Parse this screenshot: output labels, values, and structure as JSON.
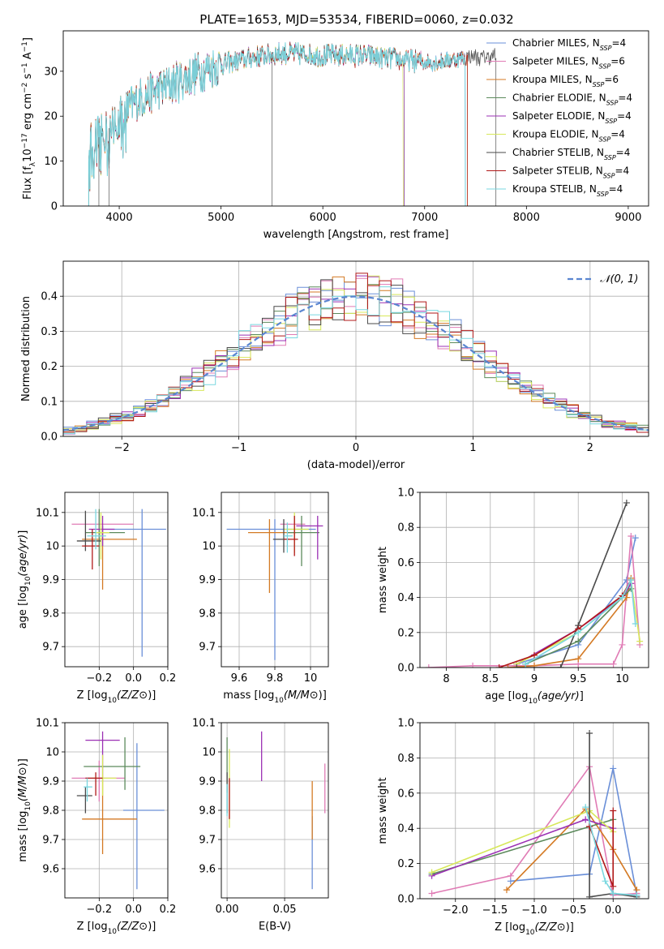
{
  "figure": {
    "title": "PLATE=1653, MJD=53534, FIBERID=0060, z=0.032"
  },
  "models": [
    {
      "name": "Chabrier MILES",
      "nssp": "4",
      "color": "#6a8fd8"
    },
    {
      "name": "Salpeter MILES",
      "nssp": "6",
      "color": "#e07bb5"
    },
    {
      "name": "Kroupa MILES",
      "nssp": "6",
      "color": "#d47a24"
    },
    {
      "name": "Chabrier ELODIE",
      "nssp": "4",
      "color": "#5c8a5c"
    },
    {
      "name": "Salpeter ELODIE",
      "nssp": "4",
      "color": "#9b30b4"
    },
    {
      "name": "Kroupa ELODIE",
      "nssp": "4",
      "color": "#d7e85a"
    },
    {
      "name": "Chabrier STELIB",
      "nssp": "4",
      "color": "#4a4a4a"
    },
    {
      "name": "Salpeter STELIB",
      "nssp": "4",
      "color": "#b01818"
    },
    {
      "name": "Kroupa STELIB",
      "nssp": "4",
      "color": "#79d7e0"
    }
  ],
  "chart_data": [
    {
      "id": "spectrum",
      "type": "line",
      "xlabel": "wavelength [Angstrom, rest frame]",
      "ylabel": "Flux [f_λ10^-17 erg cm^-2 s^-1 A^-1]",
      "xlim": [
        3450,
        9200
      ],
      "ylim": [
        0,
        39
      ],
      "xticks": [
        4000,
        5000,
        6000,
        7000,
        8000,
        9000
      ],
      "yticks": [
        0,
        10,
        20,
        30
      ],
      "grid": false,
      "legend_placement": "top-right",
      "continuum_x": [
        3700,
        3850,
        4000,
        4200,
        4500,
        4800,
        5000,
        5300,
        5600,
        6000,
        6400,
        6800,
        7100,
        7400,
        7700
      ],
      "continuum_y": [
        14,
        16,
        20,
        24,
        27,
        30,
        31.5,
        33,
        34,
        33.5,
        33.5,
        32.5,
        32,
        33,
        33.5
      ],
      "series_extent": {
        "Chabrier MILES": [
          3700,
          7400
        ],
        "Salpeter MILES": [
          3700,
          7400
        ],
        "Kroupa MILES": [
          3700,
          7420
        ],
        "Chabrier ELODIE": [
          3700,
          6800
        ],
        "Salpeter ELODIE": [
          3700,
          6800
        ],
        "Kroupa ELODIE": [
          3700,
          6790
        ],
        "Chabrier STELIB": [
          3700,
          7700
        ],
        "Salpeter STELIB": [
          3700,
          7420
        ],
        "Kroupa STELIB": [
          3700,
          7400
        ]
      }
    },
    {
      "id": "residuals",
      "type": "histogram",
      "xlabel": "(data-model)/error",
      "ylabel": "Normed distribution",
      "xlim": [
        -2.5,
        2.5
      ],
      "ylim": [
        0,
        0.5
      ],
      "xticks": [
        -2,
        -1,
        0,
        1,
        2
      ],
      "xtick_labels": [
        "−2",
        "−1",
        "0",
        "1",
        "2"
      ],
      "yticks": [
        0,
        0.1,
        0.2,
        0.3,
        0.4
      ],
      "grid": true,
      "legend": "𝒩(0, 1)",
      "legend_placement": "top-right",
      "reference_curve": {
        "type": "normal",
        "mean": 0,
        "sigma": 1,
        "color": "#5a85d0"
      },
      "bin_width": 0.1
    },
    {
      "id": "age-vs-Z",
      "type": "errorbar",
      "xlabel": "Z [log10(Z/Z⊙)]",
      "ylabel": "age [log10(age/yr)]",
      "xlim": [
        -0.4,
        0.2
      ],
      "ylim": [
        9.64,
        10.16
      ],
      "xticks": [
        -0.2,
        0.0,
        0.2
      ],
      "xtick_labels": [
        "−0.2",
        "0.0",
        "0.2"
      ],
      "yticks": [
        9.7,
        9.8,
        9.9,
        10.0,
        10.1
      ],
      "grid": true,
      "points": [
        {
          "x": 0.05,
          "xerr": [
            0.24,
            0.14
          ],
          "y": 10.05,
          "yerr": [
            0.38,
            0.06
          ]
        },
        {
          "x": -0.2,
          "xerr": [
            0.16,
            0.2
          ],
          "y": 10.065,
          "yerr": [
            0.04,
            0.035
          ]
        },
        {
          "x": -0.18,
          "xerr": [
            0.12,
            0.2
          ],
          "y": 10.02,
          "yerr": [
            0.15,
            0.04
          ]
        },
        {
          "x": -0.2,
          "xerr": [
            0.08,
            0.15
          ],
          "y": 10.04,
          "yerr": [
            0.1,
            0.07
          ]
        },
        {
          "x": -0.18,
          "xerr": [
            0.08,
            0.07
          ],
          "y": 10.05,
          "yerr": [
            0.05,
            0.04
          ]
        },
        {
          "x": -0.19,
          "xerr": [
            0.03,
            0.05
          ],
          "y": 10.04,
          "yerr": [
            0.08,
            0.06
          ]
        },
        {
          "x": -0.28,
          "xerr": [
            0.05,
            0.09
          ],
          "y": 10.015,
          "yerr": [
            0.03,
            0.09
          ]
        },
        {
          "x": -0.24,
          "xerr": [
            0.06,
            0.04
          ],
          "y": 10.0,
          "yerr": [
            0.07,
            0.05
          ]
        },
        {
          "x": -0.22,
          "xerr": [
            0.05,
            0.06
          ],
          "y": 10.03,
          "yerr": [
            0.04,
            0.08
          ]
        }
      ]
    },
    {
      "id": "age-vs-mass",
      "type": "errorbar",
      "xlabel": "mass [log10(M/M⊙)]",
      "ylabel": "",
      "xlim": [
        9.5,
        10.1
      ],
      "ylim": [
        9.64,
        10.16
      ],
      "xticks": [
        9.6,
        9.8,
        10.0
      ],
      "yticks": [
        9.7,
        9.8,
        9.9,
        10.0,
        10.1
      ],
      "grid": true,
      "points": [
        {
          "x": 9.8,
          "xerr": [
            0.27,
            0.23
          ],
          "y": 10.05,
          "yerr": [
            0.39,
            0.03
          ]
        },
        {
          "x": 9.91,
          "xerr": [
            0.08,
            0.06
          ],
          "y": 10.065,
          "yerr": [
            0.05,
            0.02
          ]
        },
        {
          "x": 9.77,
          "xerr": [
            0.12,
            0.15
          ],
          "y": 10.04,
          "yerr": [
            0.18,
            0.04
          ]
        },
        {
          "x": 9.95,
          "xerr": [
            0.08,
            0.1
          ],
          "y": 10.04,
          "yerr": [
            0.1,
            0.05
          ]
        },
        {
          "x": 10.04,
          "xerr": [
            0.12,
            0.03
          ],
          "y": 10.06,
          "yerr": [
            0.1,
            0.03
          ]
        },
        {
          "x": 9.91,
          "xerr": [
            0.06,
            0.08
          ],
          "y": 10.05,
          "yerr": [
            0.07,
            0.05
          ]
        },
        {
          "x": 9.85,
          "xerr": [
            0.06,
            0.03
          ],
          "y": 10.02,
          "yerr": [
            0.04,
            0.06
          ]
        },
        {
          "x": 9.91,
          "xerr": [
            0.06,
            0.02
          ],
          "y": 10.02,
          "yerr": [
            0.05,
            0.07
          ]
        },
        {
          "x": 9.87,
          "xerr": [
            0.02,
            0.03
          ],
          "y": 10.03,
          "yerr": [
            0.05,
            0.04
          ]
        }
      ]
    },
    {
      "id": "massweight-vs-age",
      "type": "line",
      "xlabel": "age  [log10(age/yr)]",
      "ylabel": "mass weight",
      "xlim": [
        7.7,
        10.3
      ],
      "ylim": [
        0,
        1
      ],
      "xticks": [
        8.0,
        8.5,
        9.0,
        9.5,
        10.0
      ],
      "yticks": [
        0.0,
        0.2,
        0.4,
        0.6,
        0.8,
        1.0
      ],
      "grid": true,
      "series": [
        {
          "name": "Chabrier MILES",
          "x": [
            8.8,
            9.5,
            10.05,
            10.15
          ],
          "y": [
            0.02,
            0.13,
            0.5,
            0.74
          ]
        },
        {
          "name": "Salpeter MILES",
          "x": [
            7.8,
            8.3,
            9.0,
            9.5,
            9.9,
            10.0,
            10.1,
            10.2
          ],
          "y": [
            0.0,
            0.01,
            0.01,
            0.02,
            0.02,
            0.13,
            0.75,
            0.13
          ]
        },
        {
          "name": "Kroupa MILES",
          "x": [
            8.7,
            9.0,
            9.5,
            10.05,
            10.1
          ],
          "y": [
            0.0,
            0.01,
            0.05,
            0.4,
            0.51
          ]
        },
        {
          "name": "Chabrier ELODIE",
          "x": [
            8.9,
            9.5,
            10.0,
            10.1
          ],
          "y": [
            0.02,
            0.15,
            0.4,
            0.45
          ]
        },
        {
          "name": "Salpeter ELODIE",
          "x": [
            8.8,
            9.5,
            10.0,
            10.1
          ],
          "y": [
            0.02,
            0.22,
            0.4,
            0.48
          ]
        },
        {
          "name": "Kroupa ELODIE",
          "x": [
            8.8,
            9.5,
            10.0,
            10.1,
            10.2
          ],
          "y": [
            0.02,
            0.2,
            0.4,
            0.5,
            0.15
          ]
        },
        {
          "name": "Chabrier STELIB",
          "x": [
            8.8,
            9.3,
            9.5,
            10.05
          ],
          "y": [
            0.0,
            0.0,
            0.24,
            0.94
          ]
        },
        {
          "name": "Salpeter STELIB",
          "x": [
            8.6,
            9.0,
            9.5,
            10.0,
            10.1
          ],
          "y": [
            0.0,
            0.07,
            0.22,
            0.41,
            0.5
          ]
        },
        {
          "name": "Kroupa STELIB",
          "x": [
            8.9,
            9.5,
            10.0,
            10.1,
            10.15
          ],
          "y": [
            0.02,
            0.2,
            0.4,
            0.5,
            0.25
          ]
        }
      ]
    },
    {
      "id": "mass-vs-Z",
      "type": "errorbar",
      "xlabel": "Z [log10(Z/Z⊙)]",
      "ylabel": "mass [log10(M/M⊙)]",
      "xlim": [
        -0.4,
        0.2
      ],
      "ylim": [
        9.5,
        10.1
      ],
      "xticks": [
        -0.2,
        0.0,
        0.2
      ],
      "xtick_labels": [
        "−0.2",
        "0.0",
        "0.2"
      ],
      "yticks": [
        9.6,
        9.7,
        9.8,
        9.9,
        10.0,
        10.1
      ],
      "grid": true,
      "points": [
        {
          "x": 0.02,
          "xerr": [
            0.08,
            0.16
          ],
          "y": 9.8,
          "yerr": [
            0.27,
            0.23
          ]
        },
        {
          "x": -0.2,
          "xerr": [
            0.16,
            0.15
          ],
          "y": 9.91,
          "yerr": [
            0.08,
            0.06
          ]
        },
        {
          "x": -0.18,
          "xerr": [
            0.12,
            0.2
          ],
          "y": 9.77,
          "yerr": [
            0.12,
            0.15
          ]
        },
        {
          "x": -0.05,
          "xerr": [
            0.24,
            0.09
          ],
          "y": 9.95,
          "yerr": [
            0.08,
            0.1
          ]
        },
        {
          "x": -0.18,
          "xerr": [
            0.1,
            0.1
          ],
          "y": 10.04,
          "yerr": [
            0.12,
            0.03
          ]
        },
        {
          "x": -0.18,
          "xerr": [
            0.06,
            0.08
          ],
          "y": 9.91,
          "yerr": [
            0.06,
            0.08
          ]
        },
        {
          "x": -0.28,
          "xerr": [
            0.05,
            0.04
          ],
          "y": 9.85,
          "yerr": [
            0.06,
            0.03
          ]
        },
        {
          "x": -0.22,
          "xerr": [
            0.06,
            0.04
          ],
          "y": 9.91,
          "yerr": [
            0.06,
            0.02
          ]
        },
        {
          "x": -0.27,
          "xerr": [
            0.02,
            0.03
          ],
          "y": 9.88,
          "yerr": [
            0.05,
            0.03
          ]
        }
      ]
    },
    {
      "id": "mass-vs-ebv",
      "type": "errorbar",
      "xlabel": "E(B-V)",
      "ylabel": "",
      "xlim": [
        -0.005,
        0.088
      ],
      "ylim": [
        9.5,
        10.1
      ],
      "xticks": [
        0.0,
        0.05
      ],
      "xtick_labels": [
        "0.00",
        "0.05"
      ],
      "yticks": [
        9.6,
        9.7,
        9.8,
        9.9,
        10.0,
        10.1
      ],
      "grid": true,
      "points": [
        {
          "x": 0.074,
          "y": 9.78,
          "yerr": [
            0.25,
            0.0
          ]
        },
        {
          "x": 0.085,
          "y": 9.88,
          "yerr": [
            0.09,
            0.08
          ]
        },
        {
          "x": 0.074,
          "y": 9.8,
          "yerr": [
            0.1,
            0.1
          ]
        },
        {
          "x": 0.0,
          "y": 9.93,
          "yerr": [
            0.07,
            0.12
          ]
        },
        {
          "x": 0.03,
          "y": 9.99,
          "yerr": [
            0.09,
            0.08
          ]
        },
        {
          "x": 0.002,
          "y": 9.87,
          "yerr": [
            0.13,
            0.14
          ]
        },
        {
          "x": 0.0,
          "y": 9.85,
          "yerr": [
            0.06,
            0.08
          ]
        },
        {
          "x": 0.002,
          "y": 9.85,
          "yerr": [
            0.08,
            0.06
          ]
        },
        {
          "x": 0.0,
          "y": 9.84,
          "yerr": [
            0.06,
            0.05
          ]
        }
      ]
    },
    {
      "id": "massweight-vs-Z",
      "type": "line",
      "xlabel": "Z [log10(Z/Z⊙)]",
      "ylabel": "mass weight",
      "xlim": [
        -2.45,
        0.45
      ],
      "ylim": [
        0,
        1
      ],
      "xticks": [
        -2.0,
        -1.5,
        -1.0,
        -0.5,
        0.0
      ],
      "xtick_labels": [
        "−2.0",
        "−1.5",
        "−1.0",
        "−0.5",
        "0.0"
      ],
      "yticks": [
        0.0,
        0.2,
        0.4,
        0.6,
        0.8,
        1.0
      ],
      "grid": true,
      "series": [
        {
          "name": "Chabrier MILES",
          "x": [
            -1.3,
            -0.3,
            0.0,
            0.3
          ],
          "y": [
            0.1,
            0.14,
            0.74,
            0.02
          ]
        },
        {
          "name": "Salpeter MILES",
          "x": [
            -2.3,
            -1.3,
            -0.3,
            0.0,
            0.3
          ],
          "y": [
            0.03,
            0.13,
            0.75,
            0.02,
            0.03
          ]
        },
        {
          "name": "Kroupa MILES",
          "x": [
            -1.35,
            -0.35,
            0.0,
            0.3
          ],
          "y": [
            0.05,
            0.51,
            0.28,
            0.05
          ]
        },
        {
          "name": "Chabrier ELODIE",
          "x": [
            -2.3,
            0.0
          ],
          "y": [
            0.14,
            0.45
          ]
        },
        {
          "name": "Salpeter ELODIE",
          "x": [
            -2.3,
            -0.35,
            0.0
          ],
          "y": [
            0.13,
            0.45,
            0.4
          ]
        },
        {
          "name": "Kroupa ELODIE",
          "x": [
            -2.3,
            -0.3,
            0.0
          ],
          "y": [
            0.15,
            0.5,
            0.38
          ]
        },
        {
          "name": "Chabrier STELIB",
          "x": [
            -0.3,
            -0.3,
            0.0,
            0.3
          ],
          "y": [
            0.94,
            0.01,
            0.03,
            0.01
          ]
        },
        {
          "name": "Salpeter STELIB",
          "x": [
            -0.3,
            0.0,
            0.0
          ],
          "y": [
            0.41,
            0.07,
            0.5
          ]
        },
        {
          "name": "Kroupa STELIB",
          "x": [
            -0.35,
            -0.1,
            0.0,
            0.3
          ],
          "y": [
            0.52,
            0.1,
            0.03,
            0.02
          ]
        }
      ]
    }
  ]
}
